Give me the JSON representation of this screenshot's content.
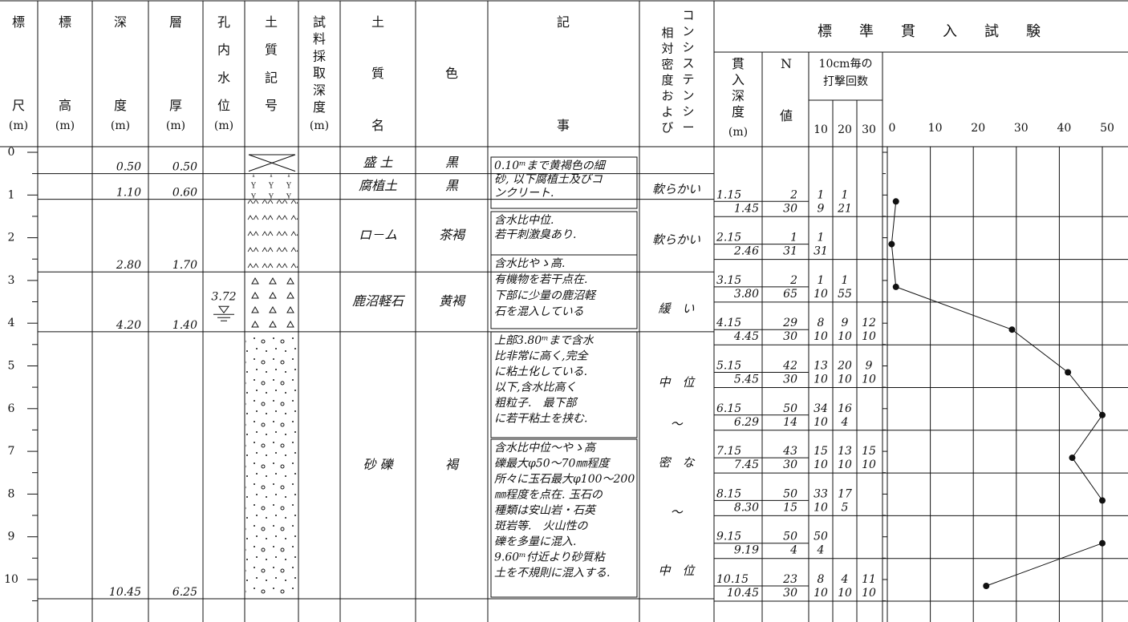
{
  "header": {
    "columns": [
      {
        "label": "標尺",
        "unit": "(m)"
      },
      {
        "label": "標高",
        "unit": "(m)"
      },
      {
        "label": "深度",
        "unit": "(m)"
      },
      {
        "label": "層厚",
        "unit": "(m)"
      },
      {
        "label": "孔内水位",
        "unit": "(m)"
      },
      {
        "label": "土質記号"
      },
      {
        "label": "試料採取深度",
        "unit": "(m)"
      },
      {
        "label": "土質名"
      },
      {
        "label": "色"
      },
      {
        "label": "記事"
      }
    ],
    "consistency": [
      "コンシステンシー",
      "相対密度および"
    ],
    "spt_title": "標準貫入試験",
    "spt_depth": {
      "label": "貫入深度",
      "unit": "(m)"
    },
    "spt_n": "N値",
    "blows_title": [
      "10cm毎の",
      "打撃回数"
    ],
    "blows_ticks": [
      10,
      20,
      30
    ],
    "n_axis": {
      "lim": [
        0,
        50
      ],
      "ticks": [
        0,
        10,
        20,
        30,
        40,
        50
      ]
    }
  },
  "depth_scale": {
    "ticks": [
      0,
      1,
      2,
      3,
      4,
      5,
      6,
      7,
      8,
      9,
      10
    ]
  },
  "layers": [
    {
      "bottom": "0.50",
      "thickness": "0.50",
      "soil": "盛 土",
      "color": "黒"
    },
    {
      "bottom": "1.10",
      "thickness": "0.60",
      "soil": "腐植土",
      "color": "黒"
    },
    {
      "bottom": "2.80",
      "thickness": "1.70",
      "soil": "ロ－ム",
      "color": "茶褐"
    },
    {
      "bottom": "4.20",
      "thickness": "1.40",
      "soil": "鹿沼軽石",
      "color": "黄褐"
    },
    {
      "bottom": "10.45",
      "thickness": "6.25",
      "soil": "砂 礫",
      "color": "褐"
    }
  ],
  "water_level": "3.72",
  "notes": [
    [
      "0.10ᵐまで黄褐色の細",
      "砂, 以下腐植土及びコ",
      "ンクリート."
    ],
    [
      "含水比中位.",
      "若干刺激臭あり."
    ],
    [
      "含水比やゝ高.",
      "有機物を若干点在.",
      "下部に少量の鹿沼軽",
      "石を混入している"
    ],
    [
      "上部3.80ᵐまで含水",
      "比非常に高く,完全",
      "に粘土化している.",
      "以下,含水比高く",
      "粗粒子.　最下部",
      "に若干粘土を挟む."
    ],
    [
      "含水比中位〜やゝ高",
      "礫最大φ50〜70㎜程度",
      "所々に玉石最大φ100〜200",
      "㎜程度を点在. 玉石の",
      "種類は安山岩・石英",
      "斑岩等.　火山性の",
      "礫を多量に混入.",
      "9.60ᵐ付近より砂質粘",
      "土を不規則に混入する."
    ]
  ],
  "consistency": [
    "軟らかい",
    "軟らかい",
    "緩　い",
    "中　位",
    "〜",
    "密　な",
    "〜",
    "中　位"
  ],
  "tests": [
    {
      "rows": [
        {
          "depth": "1.15",
          "n": 2,
          "blows": [
            1,
            1
          ]
        },
        {
          "depth": "1.45",
          "n": 30,
          "blows": [
            9,
            21
          ]
        }
      ]
    },
    {
      "rows": [
        {
          "depth": "2.15",
          "n": 1,
          "blows": [
            1
          ]
        },
        {
          "depth": "2.46",
          "n": 31,
          "blows": [
            31
          ]
        }
      ]
    },
    {
      "rows": [
        {
          "depth": "3.15",
          "n": 2,
          "blows": [
            1,
            1
          ]
        },
        {
          "depth": "3.80",
          "n": 65,
          "blows": [
            10,
            55
          ]
        }
      ]
    },
    {
      "rows": [
        {
          "depth": "4.15",
          "n": 29,
          "blows": [
            8,
            9,
            12
          ]
        },
        {
          "depth": "4.45",
          "n": 30,
          "blows": [
            10,
            10,
            10
          ]
        }
      ]
    },
    {
      "rows": [
        {
          "depth": "5.15",
          "n": 42,
          "blows": [
            13,
            20,
            9
          ]
        },
        {
          "depth": "5.45",
          "n": 30,
          "blows": [
            10,
            10,
            10
          ]
        }
      ]
    },
    {
      "rows": [
        {
          "depth": "6.15",
          "n": 50,
          "blows": [
            34,
            16
          ]
        },
        {
          "depth": "6.29",
          "n": 14,
          "blows": [
            10,
            4
          ]
        }
      ]
    },
    {
      "rows": [
        {
          "depth": "7.15",
          "n": 43,
          "blows": [
            15,
            13,
            15
          ]
        },
        {
          "depth": "7.45",
          "n": 30,
          "blows": [
            10,
            10,
            10
          ]
        }
      ]
    },
    {
      "rows": [
        {
          "depth": "8.15",
          "n": 50,
          "blows": [
            33,
            17
          ]
        },
        {
          "depth": "8.30",
          "n": 15,
          "blows": [
            10,
            5
          ]
        }
      ]
    },
    {
      "rows": [
        {
          "depth": "9.15",
          "n": 50,
          "blows": [
            50
          ]
        },
        {
          "depth": "9.19",
          "n": 4,
          "blows": [
            4
          ]
        }
      ]
    },
    {
      "rows": [
        {
          "depth": "10.15",
          "n": 23,
          "blows": [
            8,
            4,
            11
          ]
        },
        {
          "depth": "10.45",
          "n": 30,
          "blows": [
            10,
            10,
            10
          ]
        }
      ]
    }
  ]
}
